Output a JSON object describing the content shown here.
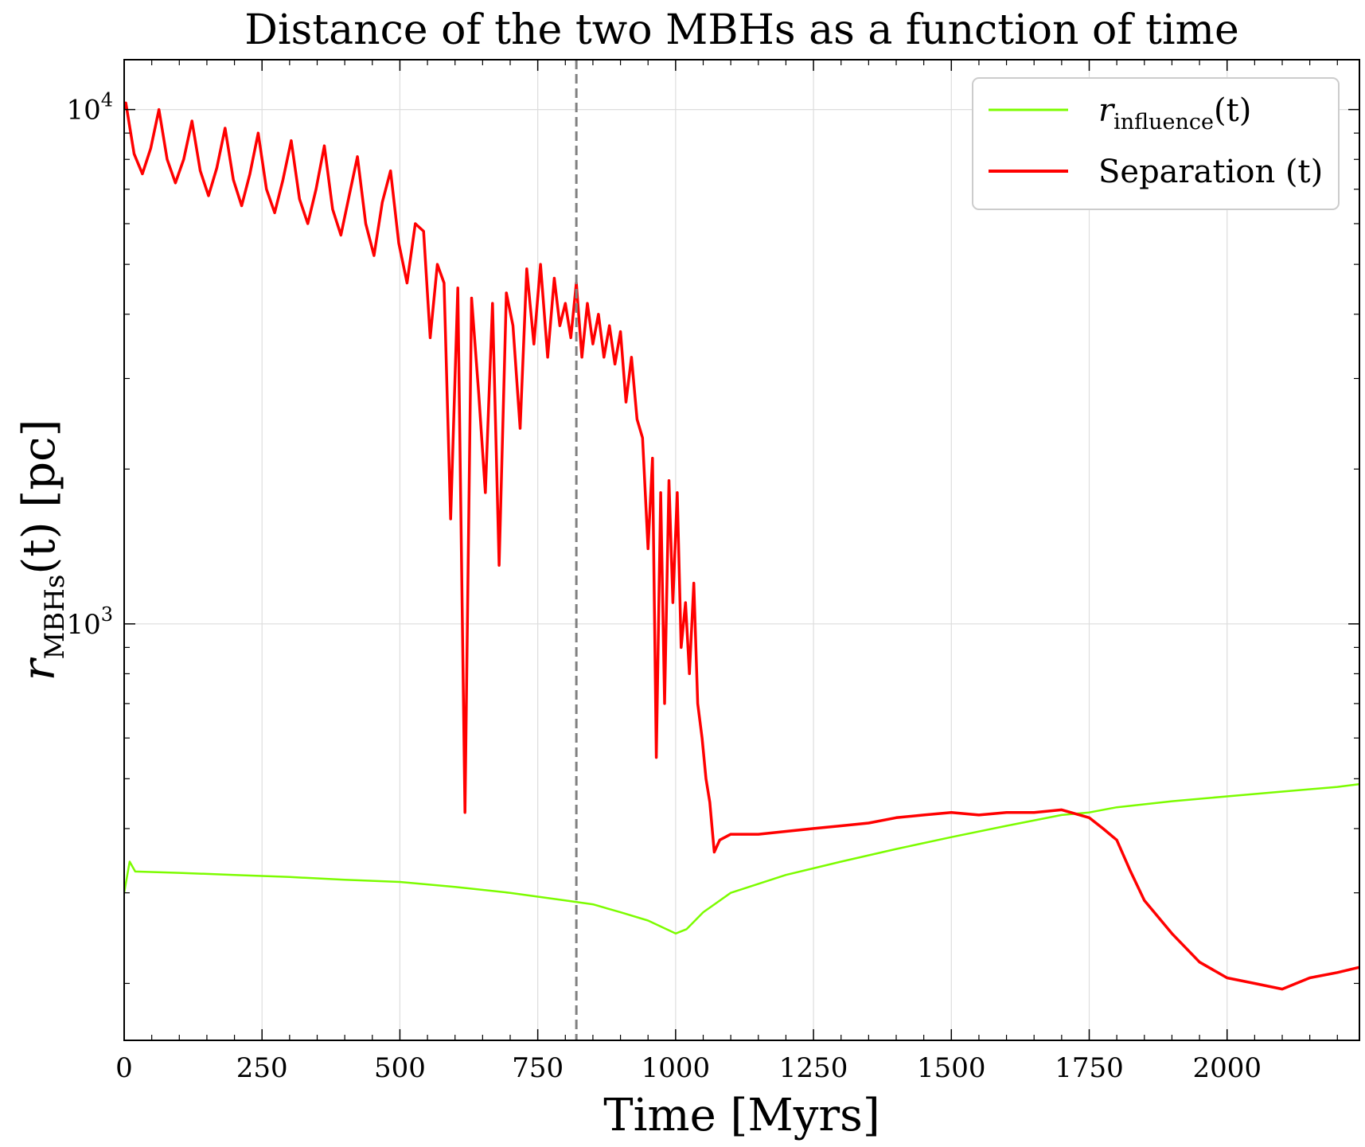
{
  "chart_data": {
    "type": "line",
    "title": "Distance of the two MBHs as a function of time",
    "xlabel": "Time [Myrs]",
    "ylabel": {
      "main": "r",
      "sub": "MBHs",
      "rest": "(t) [pc]"
    },
    "xscale": "linear",
    "yscale": "log",
    "xlim": [
      0,
      2240
    ],
    "ylim": [
      155,
      12500
    ],
    "xticks": [
      0,
      250,
      500,
      750,
      1000,
      1250,
      1500,
      1750,
      2000
    ],
    "xtick_labels": [
      "0",
      "250",
      "500",
      "750",
      "1000",
      "1250",
      "1500",
      "1750",
      "2000"
    ],
    "yticks": [
      1000,
      10000
    ],
    "ytick_labels": [
      {
        "base": "10",
        "exp": "3"
      },
      {
        "base": "10",
        "exp": "4"
      }
    ],
    "grid": true,
    "legend_position": "top-right",
    "vline": {
      "x": 820,
      "color": "#808080",
      "style": "dashed"
    },
    "series": [
      {
        "name": {
          "main": "r",
          "sub": "influence",
          "rest": "(t)"
        },
        "color": "#7cfc00",
        "x": [
          0,
          10,
          20,
          100,
          200,
          300,
          400,
          500,
          600,
          700,
          800,
          850,
          900,
          950,
          1000,
          1020,
          1050,
          1100,
          1200,
          1300,
          1400,
          1500,
          1600,
          1700,
          1750,
          1800,
          1900,
          2000,
          2100,
          2200,
          2240
        ],
        "y": [
          300,
          345,
          330,
          328,
          325,
          322,
          318,
          315,
          308,
          300,
          290,
          285,
          275,
          265,
          250,
          255,
          275,
          300,
          325,
          345,
          365,
          385,
          405,
          425,
          430,
          440,
          452,
          462,
          472,
          482,
          488
        ]
      },
      {
        "name": {
          "main": "Separation ",
          "sub": "",
          "rest": "(t)"
        },
        "color": "#ff0000",
        "x": [
          0,
          3,
          18,
          33,
          48,
          63,
          78,
          93,
          108,
          123,
          138,
          153,
          168,
          183,
          198,
          213,
          228,
          243,
          258,
          273,
          288,
          303,
          318,
          333,
          348,
          363,
          378,
          393,
          408,
          423,
          438,
          453,
          468,
          483,
          498,
          513,
          528,
          543,
          555,
          568,
          580,
          592,
          605,
          618,
          630,
          643,
          655,
          668,
          680,
          693,
          705,
          718,
          730,
          743,
          755,
          768,
          780,
          790,
          800,
          810,
          820,
          830,
          840,
          850,
          860,
          870,
          880,
          890,
          900,
          910,
          920,
          930,
          940,
          950,
          958,
          965,
          973,
          980,
          988,
          995,
          1003,
          1010,
          1018,
          1025,
          1033,
          1040,
          1048,
          1055,
          1062,
          1070,
          1080,
          1100,
          1150,
          1200,
          1250,
          1300,
          1350,
          1400,
          1450,
          1500,
          1550,
          1600,
          1650,
          1700,
          1750,
          1775,
          1800,
          1825,
          1850,
          1900,
          1950,
          2000,
          2050,
          2100,
          2150,
          2200,
          2240
        ],
        "y": [
          10000,
          10300,
          8200,
          7500,
          8400,
          10000,
          8000,
          7200,
          8000,
          9500,
          7600,
          6800,
          7700,
          9200,
          7300,
          6500,
          7500,
          9000,
          7000,
          6300,
          7300,
          8700,
          6700,
          6000,
          7000,
          8500,
          6400,
          5700,
          6800,
          8100,
          6000,
          5200,
          6600,
          7600,
          5500,
          4600,
          6000,
          5800,
          3600,
          5000,
          4600,
          1600,
          4500,
          430,
          4300,
          2800,
          1800,
          4200,
          1300,
          4400,
          3800,
          2400,
          4900,
          3500,
          5000,
          3300,
          4700,
          3800,
          4200,
          3600,
          4600,
          3300,
          4200,
          3500,
          4000,
          3300,
          3800,
          3200,
          3700,
          2700,
          3300,
          2500,
          2300,
          1400,
          2100,
          550,
          1800,
          700,
          1900,
          1100,
          1800,
          900,
          1100,
          800,
          1200,
          700,
          600,
          500,
          450,
          360,
          380,
          390,
          390,
          395,
          400,
          405,
          410,
          420,
          425,
          430,
          425,
          430,
          430,
          435,
          420,
          400,
          380,
          330,
          290,
          250,
          220,
          205,
          200,
          195,
          205,
          210,
          215
        ]
      }
    ]
  }
}
